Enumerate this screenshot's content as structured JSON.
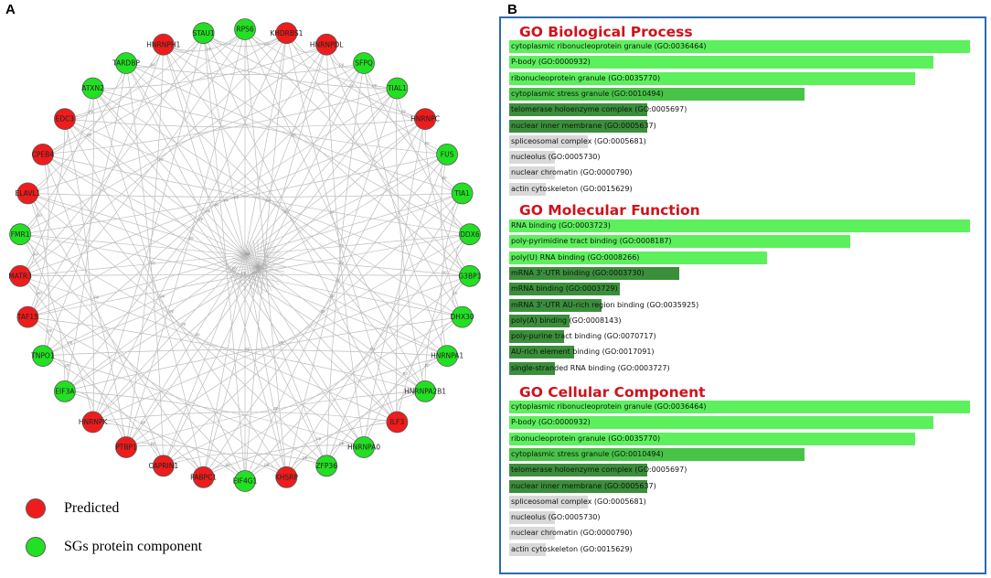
{
  "panel_a": {
    "letter": "A",
    "nodes": [
      {
        "label": "RPS6",
        "group": "sg"
      },
      {
        "label": "KHDRBS1",
        "group": "predicted"
      },
      {
        "label": "HNRNPDL",
        "group": "predicted"
      },
      {
        "label": "SFPQ",
        "group": "sg"
      },
      {
        "label": "TIAL1",
        "group": "sg"
      },
      {
        "label": "HNRNPC",
        "group": "predicted"
      },
      {
        "label": "FUS",
        "group": "sg"
      },
      {
        "label": "TIA1",
        "group": "sg"
      },
      {
        "label": "DDX6",
        "group": "sg"
      },
      {
        "label": "G3BP1",
        "group": "sg"
      },
      {
        "label": "DHX30",
        "group": "sg"
      },
      {
        "label": "HNRNPA1",
        "group": "sg"
      },
      {
        "label": "HNRNPA2B1",
        "group": "sg"
      },
      {
        "label": "ILF3",
        "group": "predicted"
      },
      {
        "label": "HNRNPA0",
        "group": "sg"
      },
      {
        "label": "ZFP36",
        "group": "sg"
      },
      {
        "label": "KHSRP",
        "group": "predicted"
      },
      {
        "label": "EIF4G1",
        "group": "sg"
      },
      {
        "label": "PABPC1",
        "group": "predicted"
      },
      {
        "label": "CAPRIN1",
        "group": "predicted"
      },
      {
        "label": "PTBP1",
        "group": "predicted"
      },
      {
        "label": "HNRNPK",
        "group": "predicted"
      },
      {
        "label": "EIF3A",
        "group": "sg"
      },
      {
        "label": "TNPO1",
        "group": "sg"
      },
      {
        "label": "TAF15",
        "group": "predicted"
      },
      {
        "label": "MATR3",
        "group": "predicted"
      },
      {
        "label": "FMR1",
        "group": "sg"
      },
      {
        "label": "ELAVL1",
        "group": "predicted"
      },
      {
        "label": "CPEB4",
        "group": "predicted"
      },
      {
        "label": "EDC3",
        "group": "predicted"
      },
      {
        "label": "ATXN2",
        "group": "sg"
      },
      {
        "label": "TARDBP",
        "group": "sg"
      },
      {
        "label": "HNRNPH1",
        "group": "predicted"
      },
      {
        "label": "STAU1",
        "group": "sg"
      }
    ],
    "edge_label": "pp",
    "legend": [
      {
        "key": "predicted",
        "label": "Predicted"
      },
      {
        "key": "sg",
        "label": "SGs protein component"
      }
    ]
  },
  "panel_b": {
    "letter": "B",
    "sections": [
      {
        "title": "GO Biological Process",
        "terms": [
          {
            "label": "cytoplasmic ribonucleoprotein granule (GO:0036464)",
            "value": 1.0,
            "shade": "bright"
          },
          {
            "label": "P-body (GO:0000932)",
            "value": 0.92,
            "shade": "bright"
          },
          {
            "label": "ribonucleoprotein granule (GO:0035770)",
            "value": 0.88,
            "shade": "bright"
          },
          {
            "label": "cytoplasmic stress granule (GO:0010494)",
            "value": 0.64,
            "shade": "medium"
          },
          {
            "label": "telomerase holoenzyme complex (GO:0005697)",
            "value": 0.3,
            "shade": "dark"
          },
          {
            "label": "nuclear inner membrane (GO:0005637)",
            "value": 0.3,
            "shade": "dark"
          },
          {
            "label": "spliceosomal complex (GO:0005681)",
            "value": 0.17,
            "shade": "grey"
          },
          {
            "label": "nucleolus (GO:0005730)",
            "value": 0.1,
            "shade": "grey"
          },
          {
            "label": "nuclear chromatin (GO:0000790)",
            "value": 0.1,
            "shade": "grey"
          },
          {
            "label": "actin cytoskeleton (GO:0015629)",
            "value": 0.08,
            "shade": "grey"
          }
        ]
      },
      {
        "title": "GO Molecular Function",
        "terms": [
          {
            "label": "RNA binding (GO:0003723)",
            "value": 1.0,
            "shade": "bright"
          },
          {
            "label": "poly-pyrimidine tract binding (GO:0008187)",
            "value": 0.74,
            "shade": "bright"
          },
          {
            "label": "poly(U) RNA binding (GO:0008266)",
            "value": 0.56,
            "shade": "bright"
          },
          {
            "label": "mRNA 3'-UTR binding (GO:0003730)",
            "value": 0.37,
            "shade": "dark"
          },
          {
            "label": "mRNA binding (GO:0003729)",
            "value": 0.24,
            "shade": "dark"
          },
          {
            "label": "mRNA 3'-UTR AU-rich region binding (GO:0035925)",
            "value": 0.2,
            "shade": "dark"
          },
          {
            "label": "poly(A) binding (GO:0008143)",
            "value": 0.13,
            "shade": "dark"
          },
          {
            "label": "poly-purine tract binding (GO:0070717)",
            "value": 0.12,
            "shade": "dark"
          },
          {
            "label": "AU-rich element binding (GO:0017091)",
            "value": 0.14,
            "shade": "dark"
          },
          {
            "label": "single-stranded RNA binding (GO:0003727)",
            "value": 0.1,
            "shade": "dark"
          }
        ]
      },
      {
        "title": "GO Cellular Component",
        "terms": [
          {
            "label": "cytoplasmic ribonucleoprotein granule (GO:0036464)",
            "value": 1.0,
            "shade": "bright"
          },
          {
            "label": "P-body (GO:0000932)",
            "value": 0.92,
            "shade": "bright"
          },
          {
            "label": "ribonucleoprotein granule (GO:0035770)",
            "value": 0.88,
            "shade": "bright"
          },
          {
            "label": "cytoplasmic stress granule (GO:0010494)",
            "value": 0.64,
            "shade": "medium"
          },
          {
            "label": "telomerase holoenzyme complex (GO:0005697)",
            "value": 0.3,
            "shade": "dark"
          },
          {
            "label": "nuclear inner membrane (GO:0005637)",
            "value": 0.3,
            "shade": "dark"
          },
          {
            "label": "spliceosomal complex (GO:0005681)",
            "value": 0.17,
            "shade": "grey"
          },
          {
            "label": "nucleolus (GO:0005730)",
            "value": 0.1,
            "shade": "grey"
          },
          {
            "label": "nuclear chromatin (GO:0000790)",
            "value": 0.1,
            "shade": "grey"
          },
          {
            "label": "actin cytoskeleton (GO:0015629)",
            "value": 0.08,
            "shade": "grey"
          }
        ]
      }
    ]
  },
  "colors": {
    "predicted": "#ee1c1c",
    "sg": "#22e022",
    "node_stroke": "#5a5a5a",
    "edge": "#bdbdbd",
    "title_red": "#d0121b",
    "box_blue": "#2b6cb0",
    "bar_bright": "#5cf05c",
    "bar_medium": "#47c447",
    "bar_dark": "#3a8f3a",
    "bar_grey": "#d9d9d9"
  }
}
